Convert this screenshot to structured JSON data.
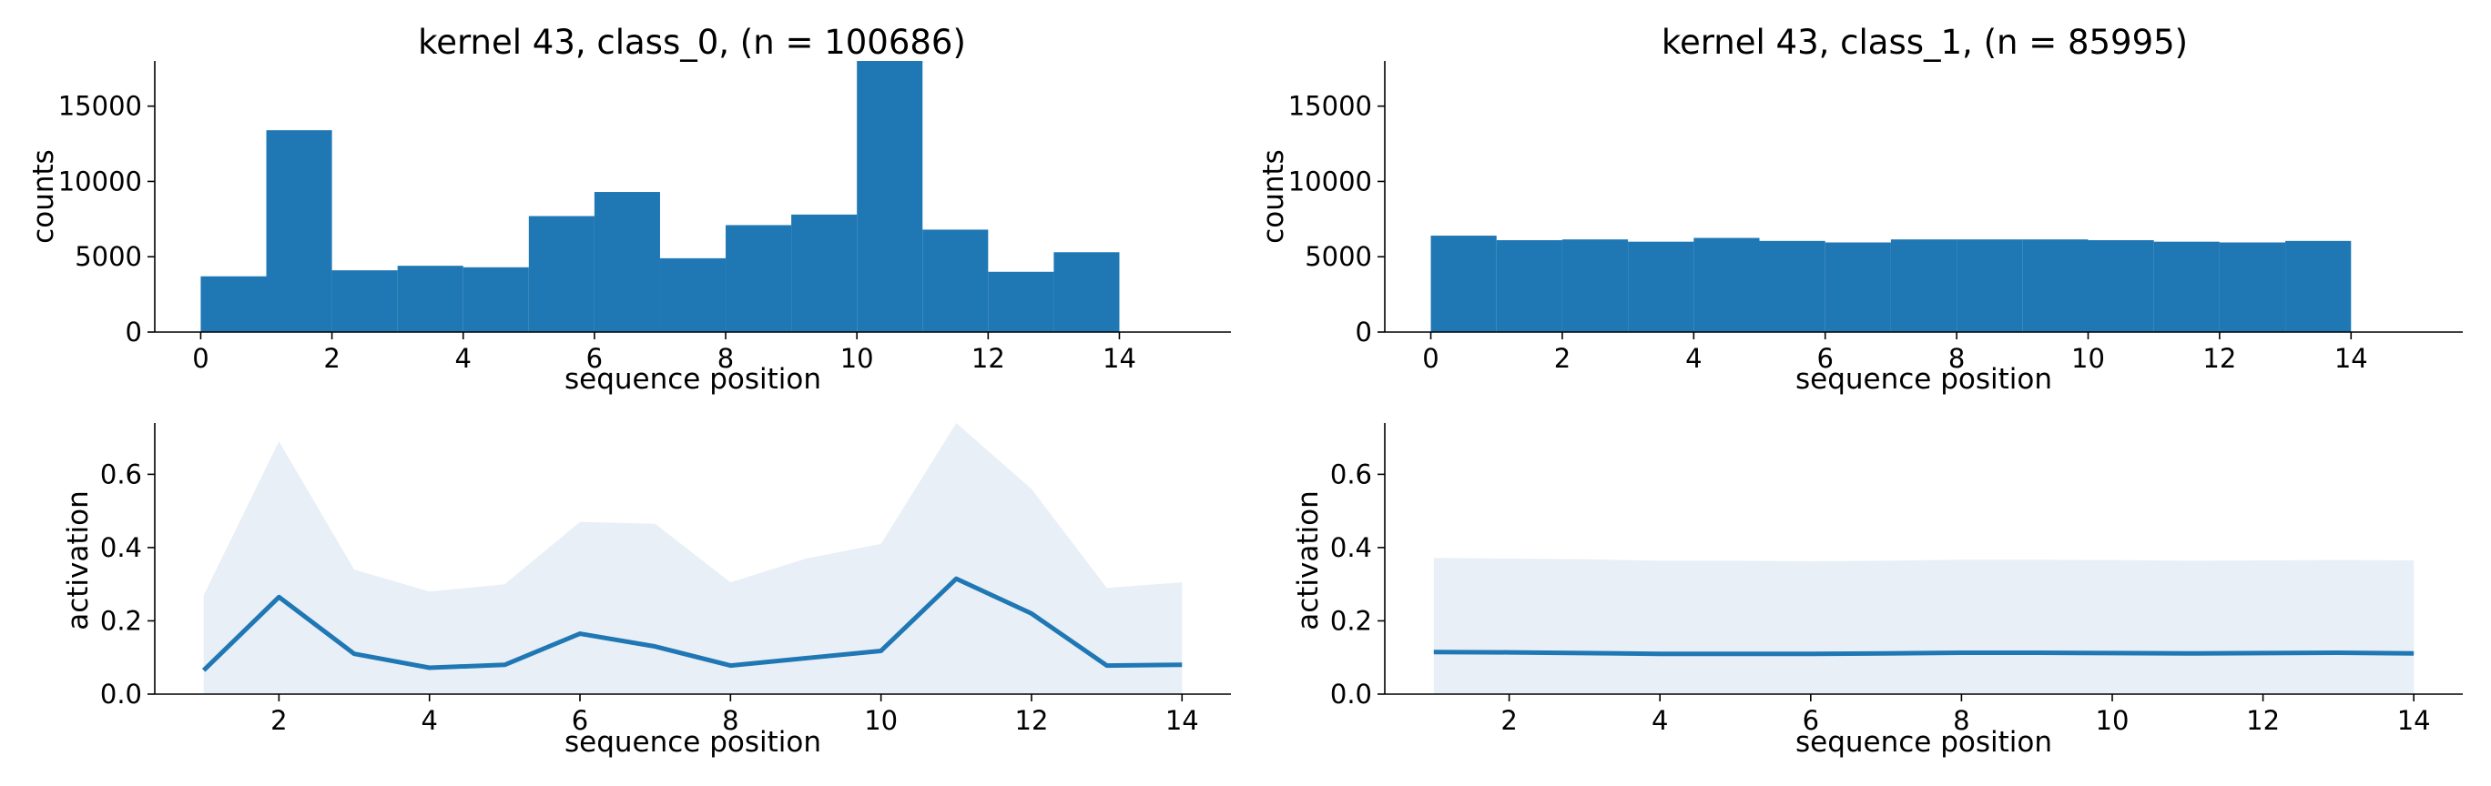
{
  "chart_data": [
    {
      "type": "bar",
      "title": "kernel 43, class_0, (n = 100686)",
      "xlabel": "sequence position",
      "ylabel": "counts",
      "bin_edges": [
        0,
        1,
        2,
        3,
        4,
        5,
        6,
        7,
        8,
        9,
        10,
        11,
        12,
        13,
        14
      ],
      "values": [
        3700,
        13400,
        4100,
        4400,
        4300,
        7700,
        9300,
        4900,
        7100,
        7800,
        18000,
        6800,
        4000,
        5300
      ],
      "xlim": [
        -0.7,
        15.7
      ],
      "ylim": [
        0,
        18000
      ],
      "xticks": [
        "0",
        "2",
        "4",
        "6",
        "8",
        "10",
        "12",
        "14"
      ],
      "yticks": [
        "0",
        "5000",
        "10000",
        "15000"
      ],
      "color": "#1f77b4",
      "grid": false
    },
    {
      "type": "bar",
      "title": "kernel 43, class_1, (n = 85995)",
      "xlabel": "sequence position",
      "ylabel": "counts",
      "bin_edges": [
        0,
        1,
        2,
        3,
        4,
        5,
        6,
        7,
        8,
        9,
        10,
        11,
        12,
        13,
        14
      ],
      "values": [
        6400,
        6100,
        6150,
        6000,
        6250,
        6050,
        5950,
        6150,
        6150,
        6150,
        6100,
        6000,
        5950,
        6050
      ],
      "xlim": [
        -0.7,
        15.7
      ],
      "ylim": [
        0,
        18000
      ],
      "xticks": [
        "0",
        "2",
        "4",
        "6",
        "8",
        "10",
        "12",
        "14"
      ],
      "yticks": [
        "0",
        "5000",
        "10000",
        "15000"
      ],
      "color": "#1f77b4",
      "grid": false
    },
    {
      "type": "line",
      "title": "",
      "xlabel": "sequence position",
      "ylabel": "activation",
      "x": [
        1,
        2,
        3,
        4,
        5,
        6,
        7,
        8,
        9,
        10,
        11,
        12,
        13,
        14
      ],
      "y": [
        0.065,
        0.265,
        0.11,
        0.072,
        0.08,
        0.165,
        0.13,
        0.078,
        0.098,
        0.118,
        0.315,
        0.22,
        0.078,
        0.08
      ],
      "band_upper": [
        0.27,
        0.69,
        0.34,
        0.28,
        0.3,
        0.47,
        0.465,
        0.305,
        0.37,
        0.41,
        0.74,
        0.56,
        0.29,
        0.305
      ],
      "band_lower": [
        0,
        0,
        0,
        0,
        0,
        0,
        0,
        0,
        0,
        0,
        0,
        0,
        0,
        0
      ],
      "xlim": [
        0.35,
        14.65
      ],
      "ylim": [
        0,
        0.74
      ],
      "xticks": [
        "2",
        "4",
        "6",
        "8",
        "10",
        "12",
        "14"
      ],
      "yticks": [
        "0.0",
        "0.2",
        "0.4",
        "0.6"
      ],
      "line_color": "#1f77b4",
      "band_color": "#e8eff7",
      "grid": false
    },
    {
      "type": "line",
      "title": "",
      "xlabel": "sequence position",
      "ylabel": "activation",
      "x": [
        1,
        2,
        3,
        4,
        5,
        6,
        7,
        8,
        9,
        10,
        11,
        12,
        13,
        14
      ],
      "y": [
        0.115,
        0.114,
        0.112,
        0.11,
        0.11,
        0.11,
        0.111,
        0.113,
        0.113,
        0.112,
        0.111,
        0.112,
        0.113,
        0.111
      ],
      "band_upper": [
        0.372,
        0.37,
        0.368,
        0.364,
        0.364,
        0.363,
        0.364,
        0.367,
        0.367,
        0.366,
        0.364,
        0.365,
        0.366,
        0.365
      ],
      "band_lower": [
        0,
        0,
        0,
        0,
        0,
        0,
        0,
        0,
        0,
        0,
        0,
        0,
        0,
        0
      ],
      "xlim": [
        0.35,
        14.65
      ],
      "ylim": [
        0,
        0.74
      ],
      "xticks": [
        "2",
        "4",
        "6",
        "8",
        "10",
        "12",
        "14"
      ],
      "yticks": [
        "0.0",
        "0.2",
        "0.4",
        "0.6"
      ],
      "line_color": "#1f77b4",
      "band_color": "#e8eff7",
      "grid": false
    }
  ]
}
